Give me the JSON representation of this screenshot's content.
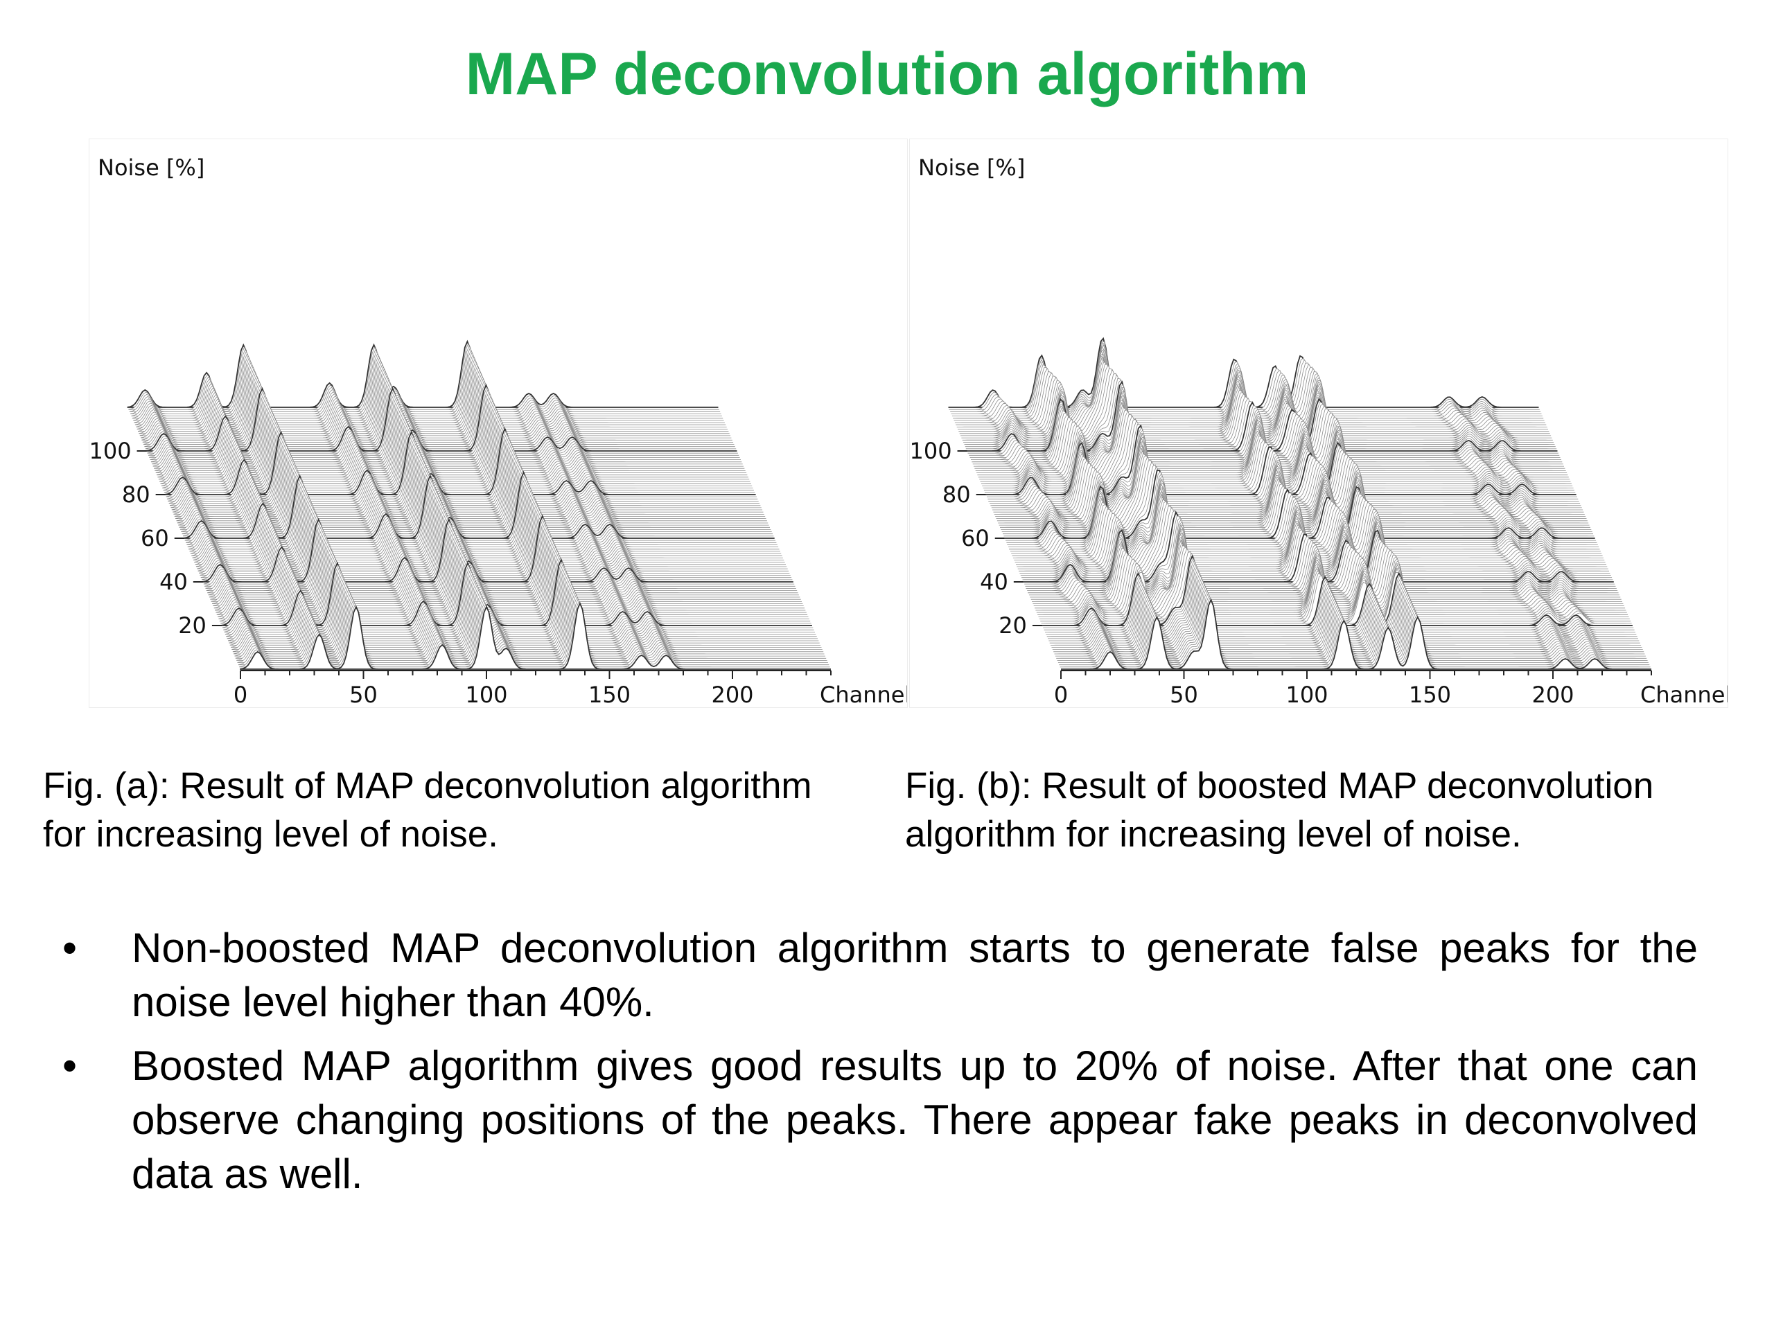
{
  "title": "MAP deconvolution algorithm",
  "captions": {
    "a": "Fig. (a): Result of MAP deconvolution algorithm\nfor  increasing level of noise.",
    "b": "Fig. (b): Result of boosted MAP deconvolution\nalgorithm for increasing level of noise."
  },
  "bullets": [
    {
      "marker": "•",
      "text": "Non-boosted MAP deconvolution algorithm starts to generate false peaks for the noise level higher than 40%."
    },
    {
      "marker": "•",
      "text": "Boosted MAP algorithm gives good results up to 20% of noise. After that one can observe changing positions of the peaks. There appear fake peaks in deconvolved data as well."
    }
  ],
  "chart_data": [
    {
      "type": "area",
      "title": "",
      "ylabel": "Noise [%]",
      "xlabel": "Channels",
      "x_ticks": [
        0,
        50,
        100,
        150,
        200
      ],
      "y_ticks": [
        20,
        40,
        60,
        80,
        100
      ],
      "xlim": [
        0,
        240
      ],
      "ylim": [
        0,
        120
      ],
      "peak_channels": [
        7,
        32,
        47,
        82,
        100,
        108,
        138,
        163,
        173
      ],
      "peak_heights": [
        0.25,
        0.5,
        0.9,
        0.35,
        0.9,
        0.3,
        0.95,
        0.2,
        0.2
      ]
    },
    {
      "type": "area",
      "title": "",
      "ylabel": "Noise [%]",
      "xlabel": "Channels",
      "x_ticks": [
        0,
        50,
        100,
        150,
        200
      ],
      "y_ticks": [
        20,
        40,
        60,
        80,
        100
      ],
      "xlim": [
        0,
        240
      ],
      "ylim": [
        0,
        120
      ],
      "peak_channels": [
        20,
        39,
        54,
        61,
        115,
        133,
        145,
        205,
        217
      ],
      "peak_heights": [
        0.25,
        0.75,
        0.25,
        1.0,
        0.7,
        0.6,
        0.75,
        0.15,
        0.15
      ]
    }
  ]
}
